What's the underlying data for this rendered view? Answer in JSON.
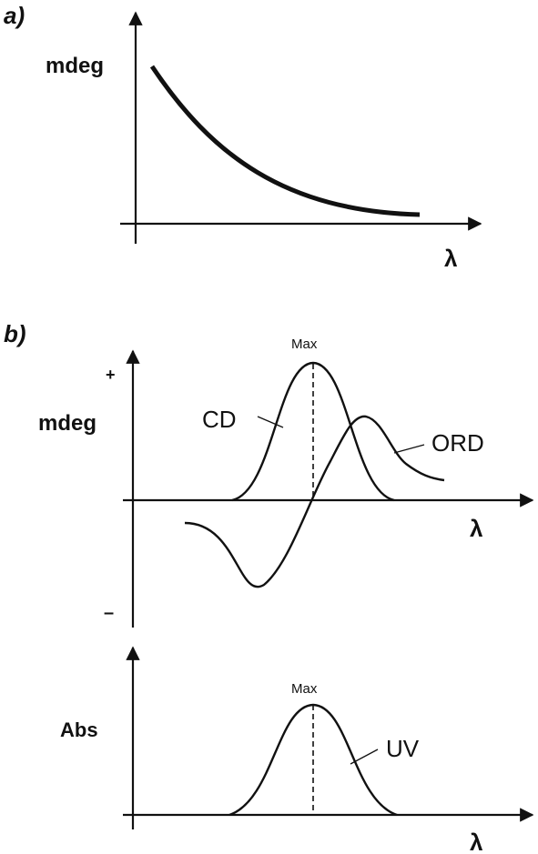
{
  "panel_a": {
    "label": "a)",
    "ylabel": "mdeg",
    "xlabel": "λ",
    "curve_name": "mdeg-decay-curve"
  },
  "panel_b_top": {
    "label": "b)",
    "ylabel": "mdeg",
    "xlabel": "λ",
    "plus": "+",
    "minus": "–",
    "max_label": "Max",
    "series": [
      {
        "name": "CD"
      },
      {
        "name": "ORD"
      }
    ]
  },
  "panel_b_bottom": {
    "ylabel": "Abs",
    "xlabel": "λ",
    "max_label": "Max",
    "series": [
      {
        "name": "UV"
      }
    ]
  }
}
